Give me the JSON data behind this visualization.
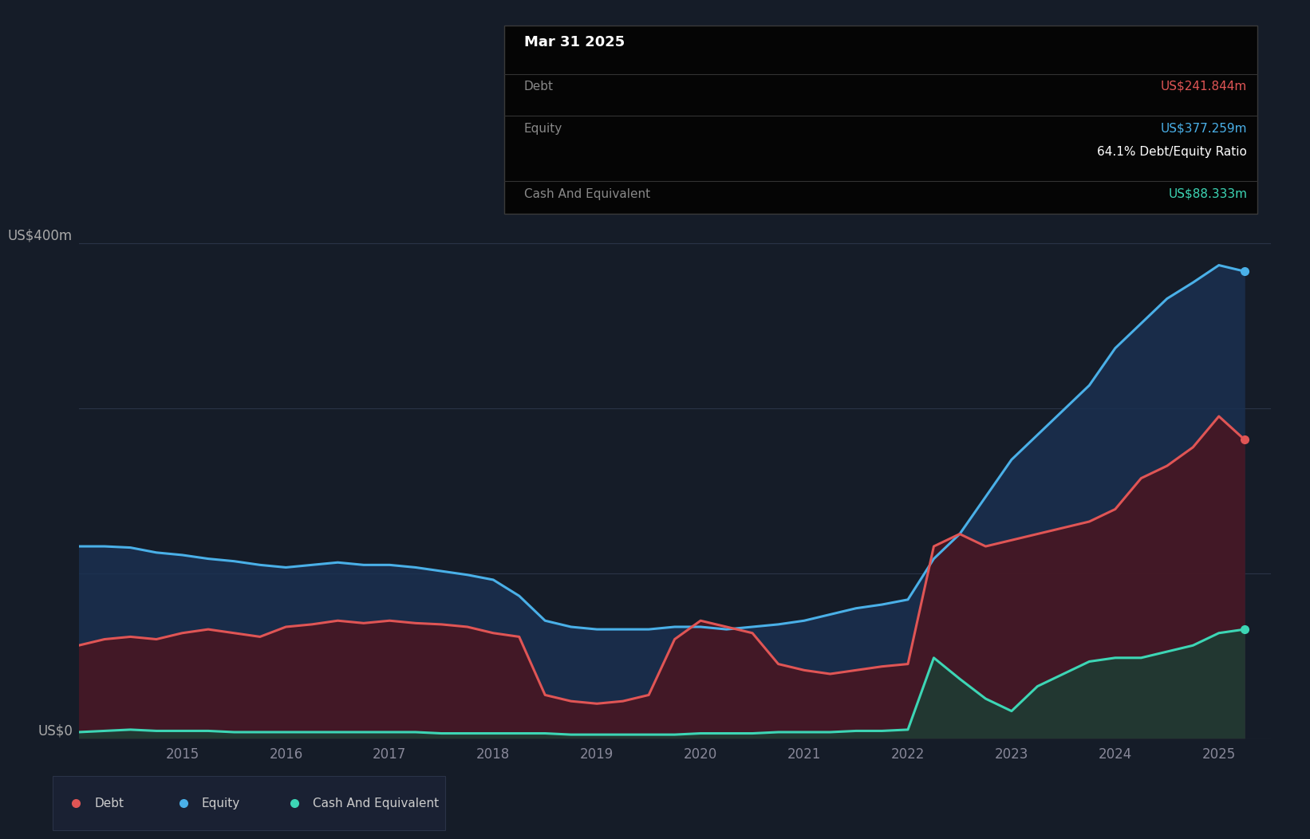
{
  "bg_color": "#151c28",
  "plot_bg_color": "#151c28",
  "grid_color": "#2a3347",
  "line_debt_color": "#e05555",
  "line_equity_color": "#4ab0e8",
  "line_cash_color": "#3dd6b5",
  "fill_debt_color": "#4a1520",
  "fill_equity_color": "#1a3050",
  "fill_cash_color": "#1a4035",
  "tooltip_title": "Mar 31 2025",
  "tooltip_debt_label": "Debt",
  "tooltip_debt_value": "US$241.844m",
  "tooltip_equity_label": "Equity",
  "tooltip_equity_value": "US$377.259m",
  "tooltip_ratio": "64.1% Debt/Equity Ratio",
  "tooltip_cash_label": "Cash And Equivalent",
  "tooltip_cash_value": "US$88.333m",
  "legend_items": [
    "Debt",
    "Equity",
    "Cash And Equivalent"
  ],
  "years": [
    2014.0,
    2014.25,
    2014.5,
    2014.75,
    2015.0,
    2015.25,
    2015.5,
    2015.75,
    2016.0,
    2016.25,
    2016.5,
    2016.75,
    2017.0,
    2017.25,
    2017.5,
    2017.75,
    2018.0,
    2018.25,
    2018.5,
    2018.75,
    2019.0,
    2019.25,
    2019.5,
    2019.75,
    2020.0,
    2020.25,
    2020.5,
    2020.75,
    2021.0,
    2021.25,
    2021.5,
    2021.75,
    2022.0,
    2022.25,
    2022.5,
    2022.75,
    2023.0,
    2023.25,
    2023.5,
    2023.75,
    2024.0,
    2024.25,
    2024.5,
    2024.75,
    2025.0,
    2025.25
  ],
  "debt": [
    75,
    80,
    82,
    80,
    85,
    88,
    85,
    82,
    90,
    92,
    95,
    93,
    95,
    93,
    92,
    90,
    85,
    82,
    35,
    30,
    28,
    30,
    35,
    80,
    95,
    90,
    85,
    60,
    55,
    52,
    55,
    58,
    60,
    155,
    165,
    155,
    160,
    165,
    170,
    175,
    185,
    210,
    220,
    235,
    260,
    241
  ],
  "equity": [
    155,
    155,
    154,
    150,
    148,
    145,
    143,
    140,
    138,
    140,
    142,
    140,
    140,
    138,
    135,
    132,
    128,
    115,
    95,
    90,
    88,
    88,
    88,
    90,
    90,
    88,
    90,
    92,
    95,
    100,
    105,
    108,
    112,
    145,
    165,
    195,
    225,
    245,
    265,
    285,
    315,
    335,
    355,
    368,
    382,
    377
  ],
  "cash": [
    5,
    6,
    7,
    6,
    6,
    6,
    5,
    5,
    5,
    5,
    5,
    5,
    5,
    5,
    4,
    4,
    4,
    4,
    4,
    3,
    3,
    3,
    3,
    3,
    4,
    4,
    4,
    5,
    5,
    5,
    6,
    6,
    7,
    65,
    48,
    32,
    22,
    42,
    52,
    62,
    65,
    65,
    70,
    75,
    85,
    88
  ],
  "xlim": [
    2014.0,
    2025.5
  ],
  "ylim": [
    0,
    420
  ],
  "xticks": [
    2015,
    2016,
    2017,
    2018,
    2019,
    2020,
    2021,
    2022,
    2023,
    2024,
    2025
  ],
  "ytick_label_400": "US$400m",
  "ytick_label_0": "US$0"
}
